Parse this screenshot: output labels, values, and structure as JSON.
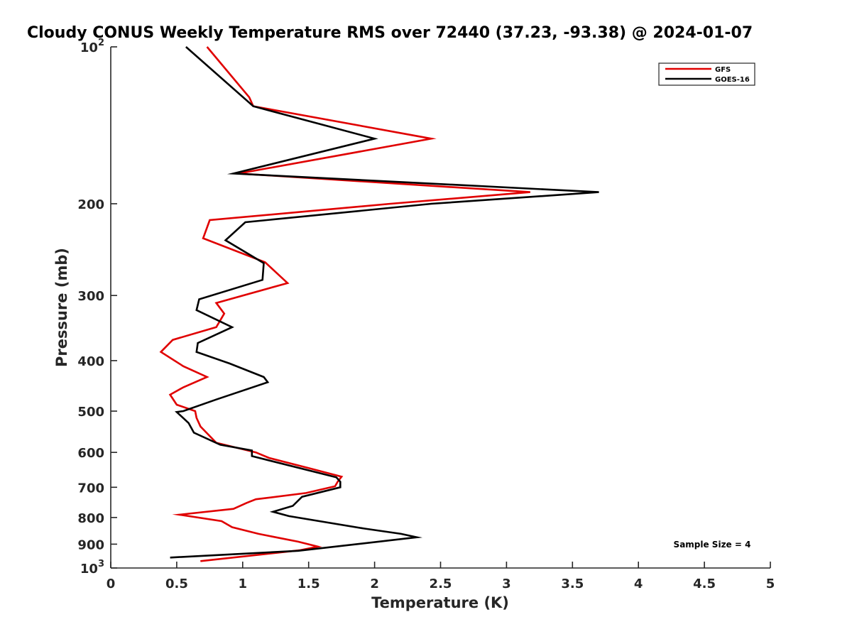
{
  "chart_data": {
    "type": "line",
    "title": "Cloudy CONUS Weekly Temperature RMS over 72440 (37.23, -93.38) @ 2024-01-07",
    "xlabel": "Temperature (K)",
    "ylabel": "Pressure (mb)",
    "xlim": [
      0,
      5
    ],
    "ylim": [
      100,
      1000
    ],
    "y_scale": "log",
    "y_reversed": true,
    "grid": false,
    "legend_position": "top-right",
    "x_ticks": [
      0,
      0.5,
      1,
      1.5,
      2,
      2.5,
      3,
      3.5,
      4,
      4.5,
      5
    ],
    "x_tick_labels": [
      "0",
      "0.5",
      "1",
      "1.5",
      "2",
      "2.5",
      "3",
      "3.5",
      "4",
      "4.5",
      "5"
    ],
    "y_ticks": [
      {
        "value": 100,
        "base": "10",
        "exp": "2"
      },
      {
        "value": 200,
        "label": "200"
      },
      {
        "value": 300,
        "label": "300"
      },
      {
        "value": 400,
        "label": "400"
      },
      {
        "value": 500,
        "label": "500"
      },
      {
        "value": 600,
        "label": "600"
      },
      {
        "value": 700,
        "label": "700"
      },
      {
        "value": 800,
        "label": "800"
      },
      {
        "value": 900,
        "label": "900"
      },
      {
        "value": 1000,
        "base": "10",
        "exp": "3"
      }
    ],
    "annotation": "Sample Size = 4",
    "series": [
      {
        "name": "GFS",
        "color": "#e00000",
        "points": [
          [
            0.73,
            100
          ],
          [
            1.05,
            125
          ],
          [
            1.08,
            130
          ],
          [
            2.43,
            150
          ],
          [
            0.97,
            175
          ],
          [
            3.18,
            190
          ],
          [
            2.12,
            200
          ],
          [
            0.75,
            215
          ],
          [
            0.7,
            233
          ],
          [
            1.17,
            259
          ],
          [
            1.34,
            284
          ],
          [
            0.8,
            310
          ],
          [
            0.86,
            325
          ],
          [
            0.8,
            345
          ],
          [
            0.47,
            365
          ],
          [
            0.38,
            385
          ],
          [
            0.55,
            410
          ],
          [
            0.73,
            430
          ],
          [
            0.55,
            450
          ],
          [
            0.45,
            465
          ],
          [
            0.5,
            486
          ],
          [
            0.64,
            500
          ],
          [
            0.65,
            515
          ],
          [
            0.68,
            535
          ],
          [
            0.8,
            575
          ],
          [
            1.1,
            600
          ],
          [
            1.2,
            615
          ],
          [
            1.5,
            643
          ],
          [
            1.75,
            668
          ],
          [
            1.72,
            683
          ],
          [
            1.7,
            697
          ],
          [
            1.48,
            718
          ],
          [
            1.1,
            738
          ],
          [
            1.03,
            750
          ],
          [
            0.93,
            770
          ],
          [
            0.52,
            790
          ],
          [
            0.84,
            813
          ],
          [
            0.92,
            835
          ],
          [
            1.12,
            860
          ],
          [
            1.42,
            890
          ],
          [
            1.57,
            910
          ],
          [
            1.43,
            925
          ],
          [
            0.68,
            970
          ]
        ]
      },
      {
        "name": "GOES-16",
        "color": "#000000",
        "points": [
          [
            0.57,
            100
          ],
          [
            1.08,
            130
          ],
          [
            2.0,
            150
          ],
          [
            0.93,
            175
          ],
          [
            3.7,
            190
          ],
          [
            2.43,
            200
          ],
          [
            1.02,
            217
          ],
          [
            0.87,
            235
          ],
          [
            1.16,
            260
          ],
          [
            1.15,
            280
          ],
          [
            0.67,
            305
          ],
          [
            0.65,
            320
          ],
          [
            0.92,
            345
          ],
          [
            0.66,
            370
          ],
          [
            0.65,
            385
          ],
          [
            0.9,
            405
          ],
          [
            1.16,
            430
          ],
          [
            1.19,
            440
          ],
          [
            0.8,
            475
          ],
          [
            0.55,
            500
          ],
          [
            0.5,
            502
          ],
          [
            0.59,
            527
          ],
          [
            0.63,
            550
          ],
          [
            0.83,
            580
          ],
          [
            1.07,
            595
          ],
          [
            1.07,
            610
          ],
          [
            1.71,
            670
          ],
          [
            1.74,
            683
          ],
          [
            1.74,
            700
          ],
          [
            1.45,
            730
          ],
          [
            1.38,
            760
          ],
          [
            1.23,
            780
          ],
          [
            1.35,
            795
          ],
          [
            1.92,
            840
          ],
          [
            2.2,
            860
          ],
          [
            2.32,
            873
          ],
          [
            1.9,
            898
          ],
          [
            1.42,
            927
          ],
          [
            0.45,
            955
          ]
        ]
      }
    ]
  }
}
